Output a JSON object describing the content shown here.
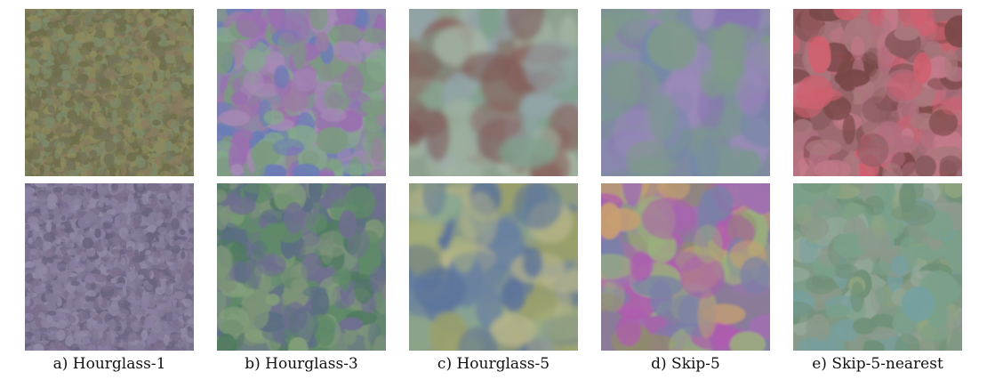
{
  "figure": {
    "panels": [
      {
        "id": "a",
        "caption": "a) Hourglass-1",
        "tiles": [
          {
            "name": "hourglass-1-top-texture",
            "base": "#7a7a52",
            "palette": [
              "#8c8a5e",
              "#6f6e4c",
              "#7d8a6a",
              "#8a7c60",
              "#74735a"
            ],
            "blur": 0.3,
            "frequency": 0.95
          },
          {
            "name": "hourglass-1-bottom-texture",
            "base": "#7a7090",
            "palette": [
              "#8a7fa0",
              "#6a6480",
              "#847c96",
              "#7b6f8c",
              "#918aa5"
            ],
            "blur": 0.3,
            "frequency": 0.95
          }
        ]
      },
      {
        "id": "b",
        "caption": "b) Hourglass-3",
        "tiles": [
          {
            "name": "hourglass-3-top-texture",
            "base": "#8a88a6",
            "palette": [
              "#7c9a80",
              "#9a6fb0",
              "#6a7bb8",
              "#a58ab5",
              "#84a88c",
              "#9c7ca4"
            ],
            "blur": 0.9,
            "frequency": 0.55
          },
          {
            "name": "hourglass-3-bottom-texture",
            "base": "#6c7e80",
            "palette": [
              "#5f8a68",
              "#6f6f90",
              "#84a07a",
              "#5a6e82",
              "#7d9479",
              "#4f7a60"
            ],
            "blur": 0.9,
            "frequency": 0.55
          }
        ]
      },
      {
        "id": "c",
        "caption": "c) Hourglass-5",
        "tiles": [
          {
            "name": "hourglass-5-top-texture",
            "base": "#8ea08e",
            "palette": [
              "#9fb29e",
              "#8a6560",
              "#7fa08c",
              "#a7b7a5",
              "#7d5a58",
              "#93a4a9"
            ],
            "blur": 3.2,
            "frequency": 0.06
          },
          {
            "name": "hourglass-5-bottom-texture",
            "base": "#8f9c80",
            "palette": [
              "#a8b27e",
              "#6a82a0",
              "#9aa06a",
              "#b6b48a",
              "#58709a",
              "#8aa891"
            ],
            "blur": 3.0,
            "frequency": 0.07
          }
        ]
      },
      {
        "id": "d",
        "caption": "d) Skip-5",
        "tiles": [
          {
            "name": "skip-5-top-texture",
            "base": "#7f8aa0",
            "palette": [
              "#8876b2",
              "#7f9a8a",
              "#8b86b0",
              "#7488a8",
              "#9a8ab8",
              "#7c9691"
            ],
            "blur": 2.2,
            "frequency": 0.05
          },
          {
            "name": "skip-5-bottom-texture",
            "base": "#8a7c98",
            "palette": [
              "#b05ab0",
              "#8f8a70",
              "#c8a070",
              "#7a80a8",
              "#a070b0",
              "#9bb07c"
            ],
            "blur": 1.4,
            "frequency": 0.12
          }
        ]
      },
      {
        "id": "e",
        "caption": "e) Skip-5-nearest",
        "tiles": [
          {
            "name": "skip-5-nearest-top-texture",
            "base": "#9c6a70",
            "palette": [
              "#b07080",
              "#7a4848",
              "#c47a8a",
              "#8a5a5f",
              "#a9787c",
              "#d06070"
            ],
            "blur": 0.6,
            "frequency": 0.45
          },
          {
            "name": "skip-5-nearest-bottom-texture",
            "base": "#809884",
            "palette": [
              "#7aa08a",
              "#8c9a8c",
              "#76a0a0",
              "#90a480",
              "#6f9077",
              "#95a99a"
            ],
            "blur": 0.6,
            "frequency": 0.45
          }
        ]
      }
    ]
  }
}
